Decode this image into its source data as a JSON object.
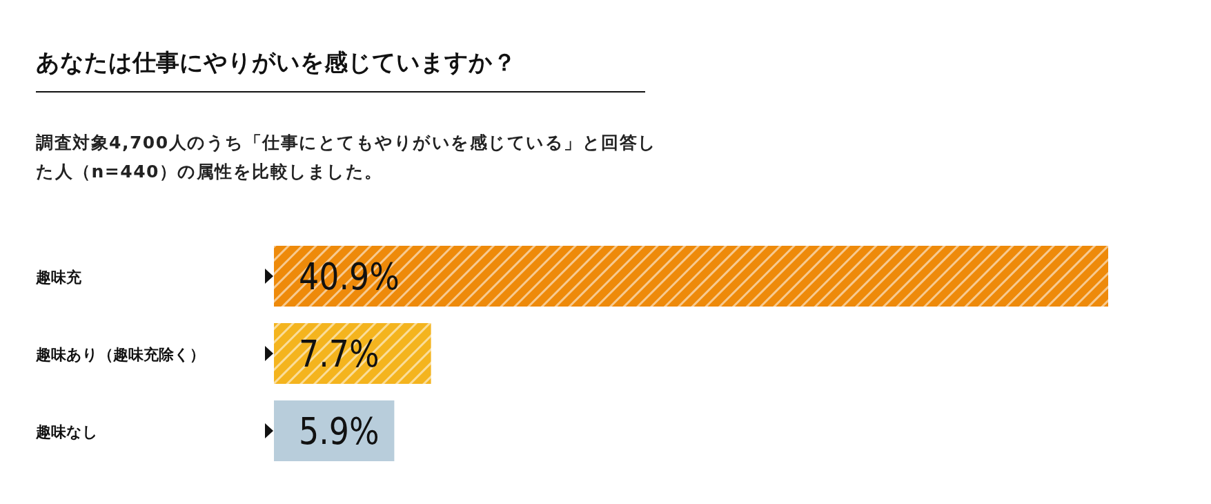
{
  "chart_data": {
    "type": "bar",
    "orientation": "horizontal",
    "title": "あなたは仕事にやりがいを感じていますか？",
    "subtitle": "調査対象4,700人のうち「仕事にとてもやりがいを感じている」と回答した人（n=440）の属性を比較しました。",
    "categories": [
      "趣味充",
      "趣味あり（趣味充除く）",
      "趣味なし"
    ],
    "values": [
      40.9,
      7.7,
      5.9
    ],
    "colors": [
      "#ee8a0a",
      "#f4b41e",
      "#b8cddb"
    ],
    "value_labels": [
      "40.9%",
      "7.7%",
      "5.9%"
    ]
  }
}
